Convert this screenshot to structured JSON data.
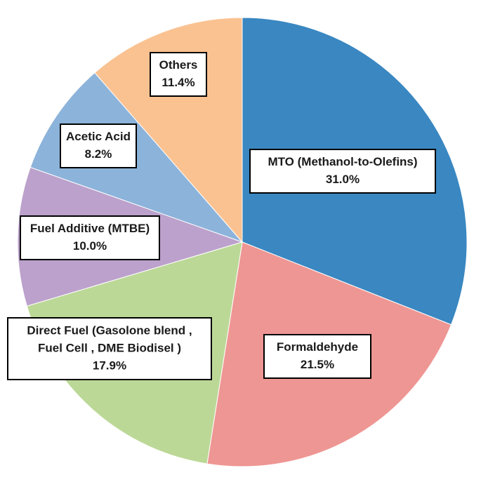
{
  "chart_data": {
    "type": "pie",
    "title": "",
    "start_angle_deg": 0,
    "direction": "clockwise",
    "slices": [
      {
        "label": "MTO (Methanol-to-Olefins)",
        "value": 31.0,
        "value_label": "31.0%",
        "color": "#3A87C1",
        "label_lines": [
          "MTO (Methanol-to-Olefins)"
        ]
      },
      {
        "label": "Formaldehyde",
        "value": 21.5,
        "value_label": "21.5%",
        "color": "#EE9693",
        "label_lines": [
          "Formaldehyde"
        ]
      },
      {
        "label": "Direct Fuel (Gasolone blend , Fuel Cell , DME Biodisel )",
        "value": 17.9,
        "value_label": "17.9%",
        "color": "#BCD897",
        "label_lines": [
          "Direct Fuel (Gasolone blend ,",
          "Fuel Cell , DME Biodisel )"
        ]
      },
      {
        "label": "Fuel Additive (MTBE)",
        "value": 10.0,
        "value_label": "10.0%",
        "color": "#BBA1CB",
        "label_lines": [
          "Fuel Additive (MTBE)"
        ]
      },
      {
        "label": "Acetic Acid",
        "value": 8.2,
        "value_label": "8.2%",
        "color": "#8CB3DA",
        "label_lines": [
          "Acetic Acid"
        ]
      },
      {
        "label": "Others",
        "value": 11.4,
        "value_label": "11.4%",
        "color": "#FAC291",
        "label_lines": [
          "Others"
        ]
      }
    ]
  }
}
